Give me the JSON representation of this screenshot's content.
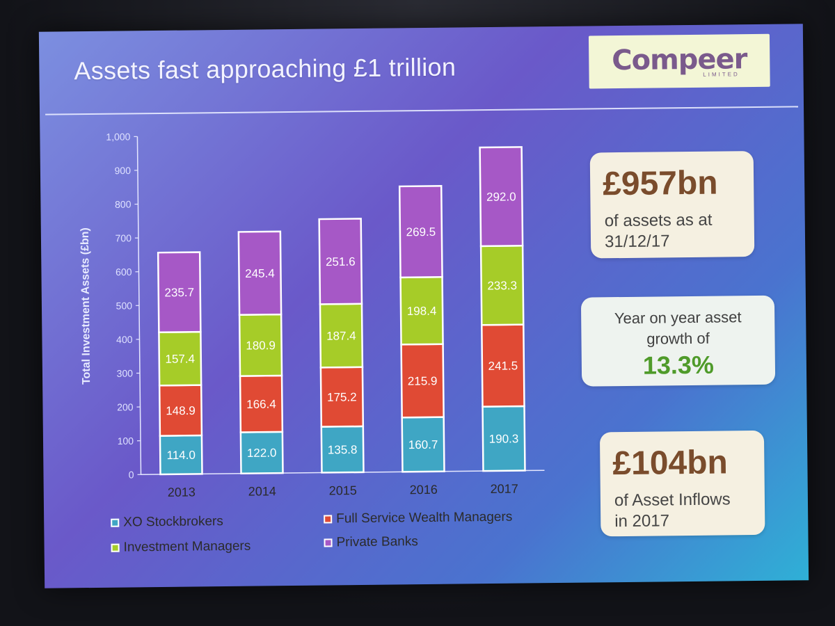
{
  "slide": {
    "title": "Assets fast approaching £1 trillion",
    "logo": {
      "word": "Compeer",
      "sub": "LIMITED"
    }
  },
  "chart_data": {
    "type": "bar",
    "stacked": true,
    "categories": [
      "2013",
      "2014",
      "2015",
      "2016",
      "2017"
    ],
    "series": [
      {
        "name": "XO Stockbrokers",
        "color": "#3fa6c4",
        "values": [
          114.0,
          122.0,
          135.8,
          160.7,
          190.3
        ]
      },
      {
        "name": "Full Service Wealth Managers",
        "color": "#e04a34",
        "values": [
          148.9,
          166.4,
          175.2,
          215.9,
          241.5
        ]
      },
      {
        "name": "Investment Managers",
        "color": "#a6cc28",
        "values": [
          157.4,
          180.9,
          187.4,
          198.4,
          233.3
        ]
      },
      {
        "name": "Private Banks",
        "color": "#a658c6",
        "values": [
          235.7,
          245.4,
          251.6,
          269.5,
          292.0
        ]
      }
    ],
    "ylabel": "Total Investment Assets (£bn)",
    "ylim": [
      0,
      1000
    ],
    "yticks": [
      "0",
      "100",
      "200",
      "300",
      "400",
      "500",
      "600",
      "700",
      "800",
      "900",
      "1,000"
    ],
    "value_labels": [
      [
        "114.0",
        "122.0",
        "135.8",
        "160.7",
        "190.3"
      ],
      [
        "148.9",
        "166.4",
        "175.2",
        "215.9",
        "241.5"
      ],
      [
        "157.4",
        "180.9",
        "187.4",
        "198.4",
        "233.3"
      ],
      [
        "235.7",
        "245.4",
        "251.6",
        "269.5",
        "292.0"
      ]
    ],
    "legend": "bottom"
  },
  "callouts": {
    "assets": {
      "figure": "£957bn",
      "line1": "of assets as at",
      "line2": "31/12/17"
    },
    "growth": {
      "line1": "Year on year asset",
      "line2": "growth of",
      "value": "13.3%"
    },
    "inflows": {
      "figure": "£104bn",
      "line1": "of Asset Inflows",
      "line2": "in 2017"
    }
  }
}
